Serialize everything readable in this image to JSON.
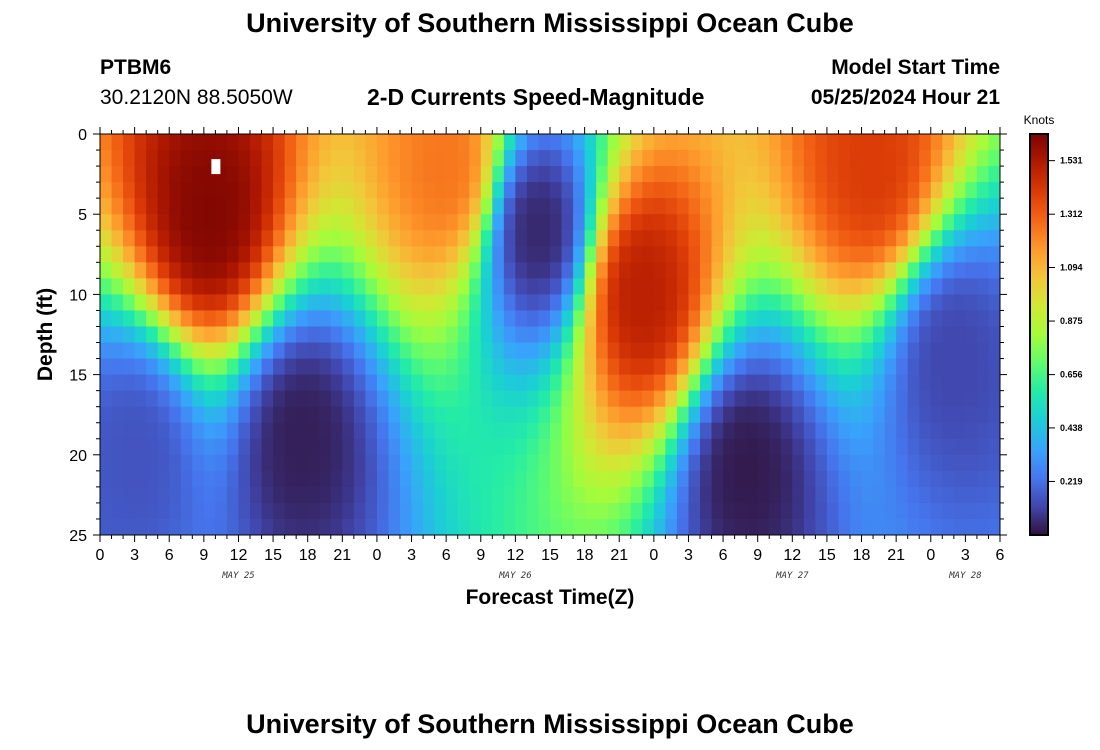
{
  "header": {
    "title": "University of Southern Mississippi Ocean Cube",
    "station_id": "PTBM6",
    "coords": "30.2120N  88.5050W",
    "chart_title": "2-D Currents Speed-Magnitude",
    "model_start_label": "Model Start Time",
    "model_start_value": "05/25/2024 Hour 21"
  },
  "footer": {
    "title": "University of Southern Mississippi Ocean Cube"
  },
  "chart_data": {
    "type": "heatmap",
    "title": "2-D Currents Speed-Magnitude",
    "xlabel": "Forecast Time(Z)",
    "ylabel": "Depth (ft)",
    "x_units": "hours since 2024-05-25 00Z",
    "xlim": [
      0,
      78
    ],
    "ylim": [
      0,
      25
    ],
    "y_inverted": true,
    "xticks": [
      0,
      3,
      6,
      9,
      12,
      15,
      18,
      21,
      24,
      27,
      30,
      33,
      36,
      39,
      42,
      45,
      48,
      51,
      54,
      57,
      60,
      63,
      66,
      69,
      72,
      75,
      78
    ],
    "xtick_labels": [
      "0",
      "3",
      "6",
      "9",
      "12",
      "15",
      "18",
      "21",
      "0",
      "3",
      "6",
      "9",
      "12",
      "15",
      "18",
      "21",
      "0",
      "3",
      "6",
      "9",
      "12",
      "15",
      "18",
      "21",
      "0",
      "3",
      "6"
    ],
    "day_labels": [
      {
        "label": "MAY 25",
        "hour": 12
      },
      {
        "label": "MAY 26",
        "hour": 36
      },
      {
        "label": "MAY 27",
        "hour": 60
      },
      {
        "label": "MAY 28",
        "hour": 75
      }
    ],
    "yticks": [
      0,
      5,
      10,
      15,
      20,
      25
    ],
    "ytick_labels": [
      "0",
      "5",
      "10",
      "15",
      "20",
      "25"
    ],
    "colorbar": {
      "title": "Knots",
      "min": 0.0,
      "max": 1.64,
      "ticks": [
        0.219,
        0.438,
        0.656,
        0.875,
        1.094,
        1.312,
        1.531
      ],
      "tick_labels": [
        "0.219",
        "0.438",
        "0.656",
        "0.875",
        "1.094",
        "1.312",
        "1.531"
      ]
    },
    "grid_resolution": {
      "time_step_hours": 1,
      "depth_step_ft": 1
    },
    "max_marker": {
      "hour": 10,
      "depth_ft": 2
    },
    "speed_features": [
      {
        "kind": "max",
        "hour": 9.5,
        "depth_ft": 5,
        "speed_knots": 1.62
      },
      {
        "kind": "max",
        "hour": 30,
        "depth_ft": 2,
        "speed_knots": 1.25
      },
      {
        "kind": "max",
        "hour": 47,
        "depth_ft": 10,
        "speed_knots": 1.5
      },
      {
        "kind": "max",
        "hour": 67,
        "depth_ft": 2,
        "speed_knots": 1.4
      },
      {
        "kind": "min",
        "hour": 3,
        "depth_ft": 20,
        "speed_knots": 0.15
      },
      {
        "kind": "min",
        "hour": 17.5,
        "depth_ft": 19,
        "speed_knots": 0.03
      },
      {
        "kind": "min",
        "hour": 38,
        "depth_ft": 6,
        "speed_knots": 0.05
      },
      {
        "kind": "min",
        "hour": 56,
        "depth_ft": 21,
        "speed_knots": 0.02
      },
      {
        "kind": "min",
        "hour": 74,
        "depth_ft": 14,
        "speed_knots": 0.12
      }
    ]
  }
}
